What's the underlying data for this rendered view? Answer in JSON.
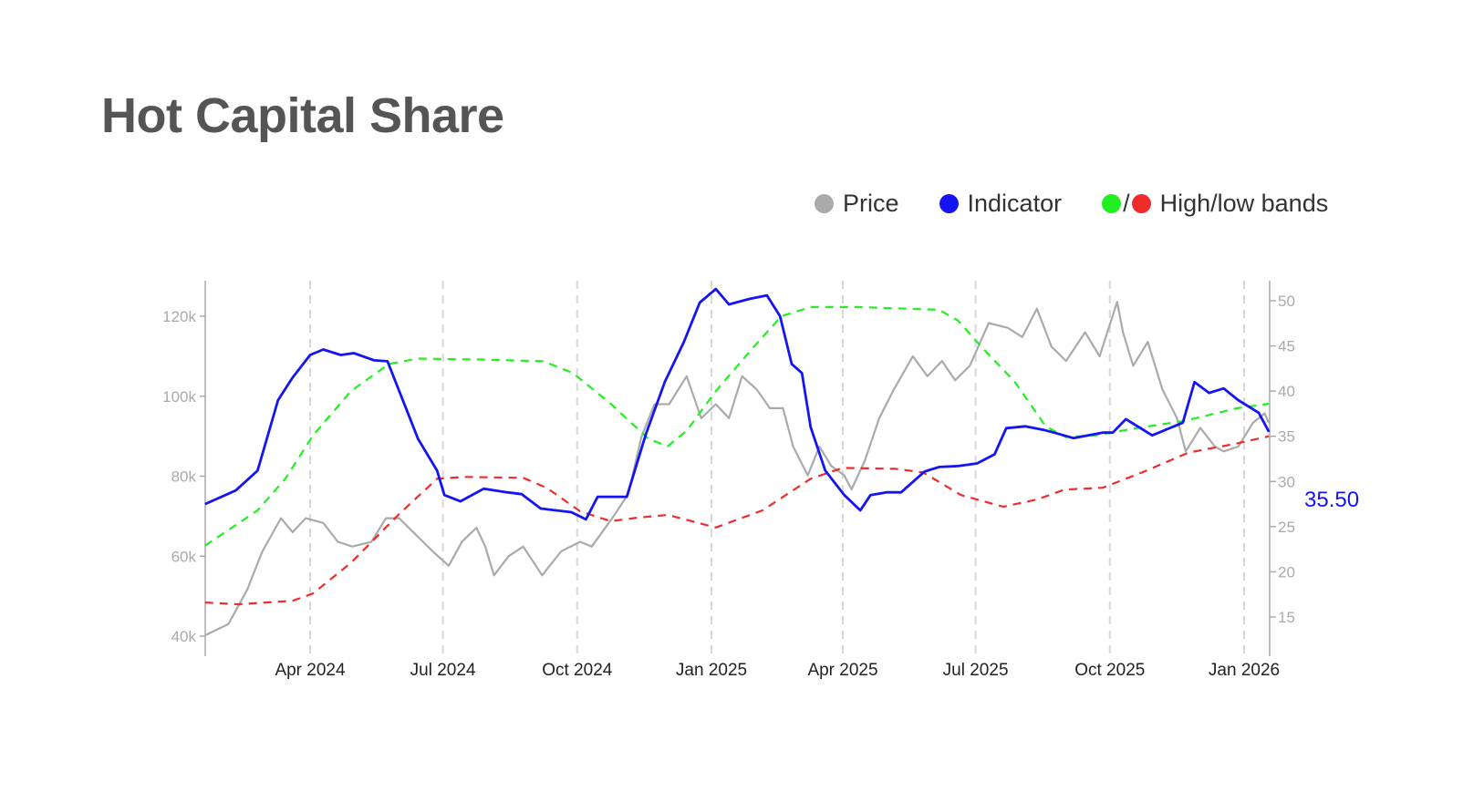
{
  "title": "Hot Capital Share",
  "legend": {
    "price": {
      "label": "Price",
      "color": "#aaaaaa"
    },
    "indicator": {
      "label": "Indicator",
      "color": "#1414f5"
    },
    "bands": {
      "label": "High/low bands",
      "separator": "/",
      "high_color": "#22ee22",
      "low_color": "#ef2b2b"
    }
  },
  "chart_data": {
    "type": "line",
    "title": "Hot Capital Share",
    "x_ticks": [
      {
        "date": "2024-04-01",
        "label": "Apr 2024"
      },
      {
        "date": "2024-07-01",
        "label": "Jul 2024"
      },
      {
        "date": "2024-10-01",
        "label": "Oct 2024"
      },
      {
        "date": "2025-01-01",
        "label": "Jan 2025"
      },
      {
        "date": "2025-04-01",
        "label": "Apr 2025"
      },
      {
        "date": "2025-07-01",
        "label": "Jul 2025"
      },
      {
        "date": "2025-10-01",
        "label": "Oct 2025"
      },
      {
        "date": "2026-01-01",
        "label": "Jan 2026"
      }
    ],
    "xlim": [
      "2024-01-20",
      "2026-01-18"
    ],
    "left_axis": {
      "ylim": [
        35,
        125
      ],
      "ticks": [
        {
          "v": 40,
          "label": "40k"
        },
        {
          "v": 60,
          "label": "60k"
        },
        {
          "v": 80,
          "label": "80k"
        },
        {
          "v": 100,
          "label": "100k"
        },
        {
          "v": 120,
          "label": "120k"
        }
      ]
    },
    "right_axis": {
      "ylim": [
        15,
        53
      ],
      "ticks": [
        {
          "v": 15,
          "label": "15"
        },
        {
          "v": 20,
          "label": "20"
        },
        {
          "v": 25,
          "label": "25"
        },
        {
          "v": 30,
          "label": "30"
        },
        {
          "v": 35,
          "label": "35"
        },
        {
          "v": 40,
          "label": "40"
        },
        {
          "v": 45,
          "label": "45"
        },
        {
          "v": 50,
          "label": "50"
        }
      ]
    },
    "last_value_label": "35.50",
    "grid": "vertical dashed",
    "series": [
      {
        "name": "Price",
        "axis": "left",
        "unit": "k",
        "style": "solid",
        "color": "#aaaaaa",
        "points": [
          [
            "2024-01-20",
            40.2
          ],
          [
            "2024-02-05",
            43
          ],
          [
            "2024-02-18",
            51.7
          ],
          [
            "2024-02-28",
            61
          ],
          [
            "2024-03-12",
            69.5
          ],
          [
            "2024-03-20",
            66
          ],
          [
            "2024-03-29",
            69.5
          ],
          [
            "2024-04-10",
            68.3
          ],
          [
            "2024-04-20",
            63.6
          ],
          [
            "2024-04-30",
            62.4
          ],
          [
            "2024-05-13",
            63.6
          ],
          [
            "2024-05-23",
            69.5
          ],
          [
            "2024-06-01",
            69.5
          ],
          [
            "2024-06-14",
            64.8
          ],
          [
            "2024-06-24",
            61.2
          ],
          [
            "2024-07-05",
            57.6
          ],
          [
            "2024-07-14",
            63.6
          ],
          [
            "2024-07-24",
            67.1
          ],
          [
            "2024-07-30",
            62.4
          ],
          [
            "2024-08-05",
            55.2
          ],
          [
            "2024-08-15",
            60
          ],
          [
            "2024-08-25",
            62.4
          ],
          [
            "2024-09-07",
            55.2
          ],
          [
            "2024-09-20",
            61.2
          ],
          [
            "2024-10-03",
            63.6
          ],
          [
            "2024-10-11",
            62.4
          ],
          [
            "2024-10-25",
            69.5
          ],
          [
            "2024-11-05",
            75.5
          ],
          [
            "2024-11-14",
            89.8
          ],
          [
            "2024-11-23",
            98
          ],
          [
            "2024-12-03",
            98
          ],
          [
            "2024-12-15",
            105
          ],
          [
            "2024-12-25",
            94.5
          ],
          [
            "2025-01-04",
            98
          ],
          [
            "2025-01-13",
            94.5
          ],
          [
            "2025-01-22",
            105
          ],
          [
            "2025-02-01",
            101.7
          ],
          [
            "2025-02-10",
            97
          ],
          [
            "2025-02-19",
            97
          ],
          [
            "2025-02-26",
            87.4
          ],
          [
            "2025-03-08",
            80.2
          ],
          [
            "2025-03-16",
            87.4
          ],
          [
            "2025-03-24",
            82.6
          ],
          [
            "2025-04-02",
            80.2
          ],
          [
            "2025-04-07",
            76.7
          ],
          [
            "2025-04-16",
            83.8
          ],
          [
            "2025-04-26",
            94.5
          ],
          [
            "2025-05-06",
            101.7
          ],
          [
            "2025-05-19",
            110
          ],
          [
            "2025-05-29",
            105
          ],
          [
            "2025-06-08",
            108.8
          ],
          [
            "2025-06-17",
            104
          ],
          [
            "2025-06-27",
            107.6
          ],
          [
            "2025-07-10",
            118.3
          ],
          [
            "2025-07-23",
            117.1
          ],
          [
            "2025-08-02",
            114.8
          ],
          [
            "2025-08-12",
            121.9
          ],
          [
            "2025-08-22",
            112.4
          ],
          [
            "2025-09-01",
            108.8
          ],
          [
            "2025-09-14",
            116
          ],
          [
            "2025-09-24",
            110
          ],
          [
            "2025-10-06",
            123.6
          ],
          [
            "2025-10-10",
            116
          ],
          [
            "2025-10-17",
            107.6
          ],
          [
            "2025-10-27",
            113.6
          ],
          [
            "2025-11-06",
            101.7
          ],
          [
            "2025-11-16",
            94.5
          ],
          [
            "2025-11-22",
            86.2
          ],
          [
            "2025-12-02",
            92.1
          ],
          [
            "2025-12-12",
            87.4
          ],
          [
            "2025-12-18",
            86.2
          ],
          [
            "2025-12-28",
            87.4
          ],
          [
            "2026-01-07",
            93.3
          ],
          [
            "2026-01-15",
            95.7
          ],
          [
            "2026-01-18",
            93.3
          ]
        ]
      },
      {
        "name": "Indicator",
        "axis": "right",
        "style": "solid",
        "color": "#1414f5",
        "points": [
          [
            "2024-01-20",
            27.5
          ],
          [
            "2024-02-10",
            29
          ],
          [
            "2024-02-25",
            31.2
          ],
          [
            "2024-03-10",
            39
          ],
          [
            "2024-03-20",
            41.5
          ],
          [
            "2024-04-01",
            44
          ],
          [
            "2024-04-10",
            44.6
          ],
          [
            "2024-04-22",
            44
          ],
          [
            "2024-05-01",
            44.2
          ],
          [
            "2024-05-15",
            43.4
          ],
          [
            "2024-05-24",
            43.3
          ],
          [
            "2024-06-14",
            34.7
          ],
          [
            "2024-06-27",
            31.2
          ],
          [
            "2024-07-02",
            28.5
          ],
          [
            "2024-07-13",
            27.8
          ],
          [
            "2024-07-29",
            29.2
          ],
          [
            "2024-08-14",
            28.8
          ],
          [
            "2024-08-24",
            28.6
          ],
          [
            "2024-09-06",
            27
          ],
          [
            "2024-09-27",
            26.6
          ],
          [
            "2024-10-07",
            25.8
          ],
          [
            "2024-10-15",
            28.3
          ],
          [
            "2024-10-25",
            28.3
          ],
          [
            "2024-11-04",
            28.3
          ],
          [
            "2024-11-17",
            35.2
          ],
          [
            "2024-11-30",
            41
          ],
          [
            "2024-12-13",
            45.4
          ],
          [
            "2024-12-24",
            49.8
          ],
          [
            "2025-01-04",
            51.3
          ],
          [
            "2025-01-13",
            49.6
          ],
          [
            "2025-01-27",
            50.2
          ],
          [
            "2025-02-08",
            50.6
          ],
          [
            "2025-02-17",
            48.3
          ],
          [
            "2025-02-25",
            43
          ],
          [
            "2025-03-04",
            42
          ],
          [
            "2025-03-10",
            36
          ],
          [
            "2025-03-20",
            31.2
          ],
          [
            "2025-04-02",
            28.5
          ],
          [
            "2025-04-13",
            26.8
          ],
          [
            "2025-04-20",
            28.5
          ],
          [
            "2025-05-01",
            28.8
          ],
          [
            "2025-05-11",
            28.8
          ],
          [
            "2025-05-27",
            31.1
          ],
          [
            "2025-06-06",
            31.6
          ],
          [
            "2025-06-19",
            31.7
          ],
          [
            "2025-07-02",
            32
          ],
          [
            "2025-07-14",
            33
          ],
          [
            "2025-07-22",
            35.9
          ],
          [
            "2025-08-04",
            36.1
          ],
          [
            "2025-08-17",
            35.7
          ],
          [
            "2025-08-26",
            35.3
          ],
          [
            "2025-09-06",
            34.8
          ],
          [
            "2025-09-26",
            35.4
          ],
          [
            "2025-10-03",
            35.4
          ],
          [
            "2025-10-12",
            36.9
          ],
          [
            "2025-10-30",
            35.1
          ],
          [
            "2025-11-20",
            36.5
          ],
          [
            "2025-11-28",
            41
          ],
          [
            "2025-12-08",
            39.8
          ],
          [
            "2025-12-18",
            40.3
          ],
          [
            "2025-12-28",
            39
          ],
          [
            "2026-01-11",
            37.6
          ],
          [
            "2026-01-18",
            35.5
          ]
        ]
      },
      {
        "name": "High band",
        "axis": "right",
        "style": "dashed",
        "color": "#22ee22",
        "points": [
          [
            "2024-01-20",
            22.9
          ],
          [
            "2024-02-25",
            26.8
          ],
          [
            "2024-03-15",
            30.3
          ],
          [
            "2024-04-03",
            35.1
          ],
          [
            "2024-04-29",
            40
          ],
          [
            "2024-05-25",
            43
          ],
          [
            "2024-06-14",
            43.6
          ],
          [
            "2024-07-24",
            43.5
          ],
          [
            "2024-09-08",
            43.3
          ],
          [
            "2024-09-28",
            42
          ],
          [
            "2024-10-24",
            38.6
          ],
          [
            "2024-11-19",
            34.7
          ],
          [
            "2024-12-02",
            33.9
          ],
          [
            "2024-12-15",
            35.6
          ],
          [
            "2025-01-04",
            40
          ],
          [
            "2025-01-30",
            44.9
          ],
          [
            "2025-02-18",
            48.3
          ],
          [
            "2025-03-10",
            49.3
          ],
          [
            "2025-04-11",
            49.3
          ],
          [
            "2025-06-06",
            49
          ],
          [
            "2025-06-19",
            47.8
          ],
          [
            "2025-07-05",
            44.9
          ],
          [
            "2025-07-28",
            41
          ],
          [
            "2025-08-18",
            36.1
          ],
          [
            "2025-09-01",
            34.9
          ],
          [
            "2025-09-21",
            35.1
          ],
          [
            "2025-10-23",
            36
          ],
          [
            "2025-11-21",
            36.7
          ],
          [
            "2025-12-27",
            38.1
          ],
          [
            "2026-01-18",
            38.6
          ]
        ]
      },
      {
        "name": "Low band",
        "axis": "right",
        "style": "dashed",
        "color": "#ef2b2b",
        "points": [
          [
            "2024-01-20",
            16.6
          ],
          [
            "2024-02-12",
            16.4
          ],
          [
            "2024-03-20",
            16.8
          ],
          [
            "2024-04-03",
            17.6
          ],
          [
            "2024-04-29",
            21
          ],
          [
            "2024-06-01",
            26.4
          ],
          [
            "2024-06-27",
            30.3
          ],
          [
            "2024-07-16",
            30.5
          ],
          [
            "2024-08-25",
            30.4
          ],
          [
            "2024-09-10",
            29.3
          ],
          [
            "2024-10-03",
            26.7
          ],
          [
            "2024-10-24",
            25.6
          ],
          [
            "2024-11-12",
            26
          ],
          [
            "2024-12-02",
            26.3
          ],
          [
            "2025-01-04",
            24.9
          ],
          [
            "2025-02-05",
            26.8
          ],
          [
            "2025-03-10",
            30.3
          ],
          [
            "2025-04-01",
            31.5
          ],
          [
            "2025-05-07",
            31.4
          ],
          [
            "2025-05-26",
            31
          ],
          [
            "2025-06-21",
            28.5
          ],
          [
            "2025-07-20",
            27.2
          ],
          [
            "2025-08-12",
            28
          ],
          [
            "2025-08-31",
            29.1
          ],
          [
            "2025-09-26",
            29.3
          ],
          [
            "2025-10-23",
            31
          ],
          [
            "2025-11-24",
            33.2
          ],
          [
            "2025-12-27",
            34.2
          ],
          [
            "2026-01-18",
            35
          ]
        ]
      }
    ]
  }
}
